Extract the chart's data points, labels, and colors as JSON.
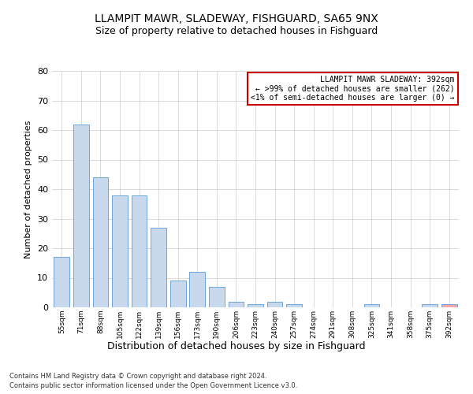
{
  "title": "LLAMPIT MAWR, SLADEWAY, FISHGUARD, SA65 9NX",
  "subtitle": "Size of property relative to detached houses in Fishguard",
  "xlabel": "Distribution of detached houses by size in Fishguard",
  "ylabel": "Number of detached properties",
  "bar_color": "#c8d9ed",
  "bar_edge_color": "#5b9bd5",
  "categories": [
    "55sqm",
    "71sqm",
    "88sqm",
    "105sqm",
    "122sqm",
    "139sqm",
    "156sqm",
    "173sqm",
    "190sqm",
    "206sqm",
    "223sqm",
    "240sqm",
    "257sqm",
    "274sqm",
    "291sqm",
    "308sqm",
    "325sqm",
    "341sqm",
    "358sqm",
    "375sqm",
    "392sqm"
  ],
  "values": [
    17,
    62,
    44,
    38,
    38,
    27,
    9,
    12,
    7,
    2,
    1,
    2,
    1,
    0,
    0,
    0,
    1,
    0,
    0,
    1,
    1
  ],
  "ylim": [
    0,
    80
  ],
  "yticks": [
    0,
    10,
    20,
    30,
    40,
    50,
    60,
    70,
    80
  ],
  "grid_color": "#cccccc",
  "annotation_box_color": "#ffffff",
  "annotation_border_color": "#cc0000",
  "annotation_title": "LLAMPIT MAWR SLADEWAY: 392sqm",
  "annotation_line1": "← >99% of detached houses are smaller (262)",
  "annotation_line2": "<1% of semi-detached houses are larger (0) →",
  "highlight_bar_index": 20,
  "highlight_bar_color": "#f4a7a7",
  "footer_line1": "Contains HM Land Registry data © Crown copyright and database right 2024.",
  "footer_line2": "Contains public sector information licensed under the Open Government Licence v3.0.",
  "bg_color": "#ffffff",
  "plot_bg_color": "#ffffff",
  "title_fontsize": 10,
  "subtitle_fontsize": 9
}
